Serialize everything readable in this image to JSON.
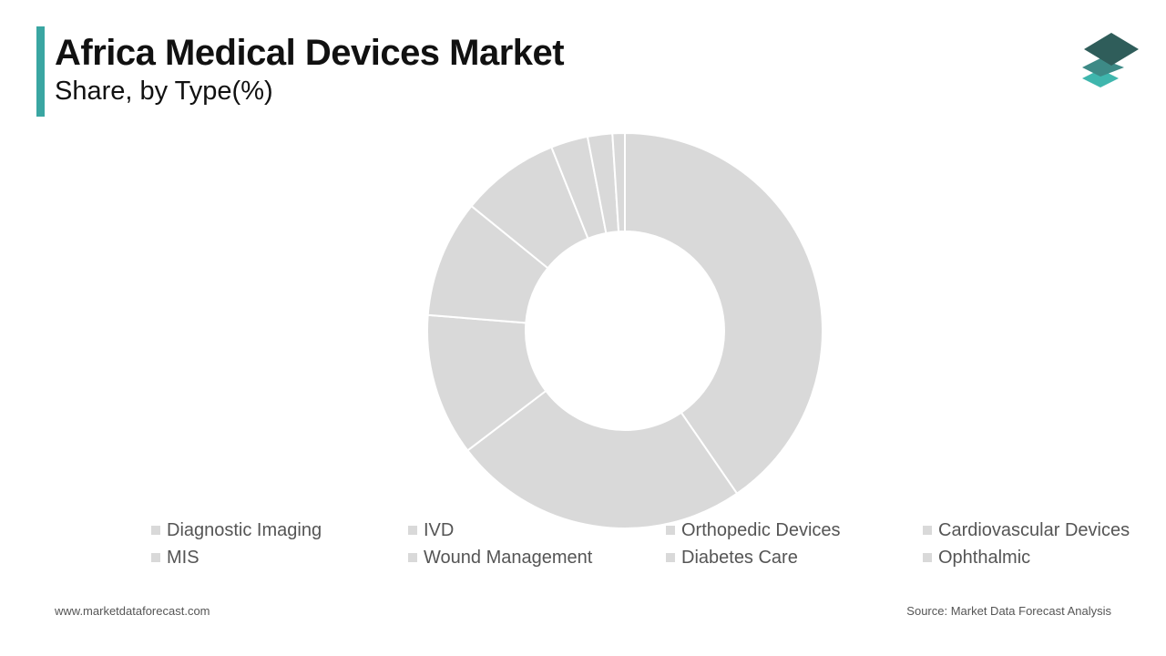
{
  "header": {
    "title": "Africa Medical Devices Market",
    "subtitle": "Share, by Type(%)"
  },
  "colors": {
    "accent": "#3aa6a2",
    "slice_fill": "#d9d9d9",
    "slice_border": "#ffffff",
    "legend_swatch": "#d9d9d9",
    "logo_top": "#2f5d5a",
    "logo_middle": "#3d8a86",
    "logo_bottom": "#3fb6ad"
  },
  "logo": {
    "icon": "stacked-layers-icon"
  },
  "chart_data": {
    "type": "donut",
    "start_angle_deg": 0,
    "direction": "clockwise",
    "categories": [
      "Diagnostic Imaging",
      "IVD",
      "Orthopedic Devices",
      "Cardiovascular Devices",
      "MIS",
      "Wound Management",
      "Diabetes Care",
      "Ophthalmic"
    ],
    "values": [
      40,
      24,
      11.5,
      9.5,
      8,
      3,
      2,
      1
    ],
    "unit": "%",
    "legend_position": "bottom"
  },
  "footer": {
    "website": "www.marketdataforecast.com",
    "source": "Source: Market Data Forecast Analysis"
  }
}
